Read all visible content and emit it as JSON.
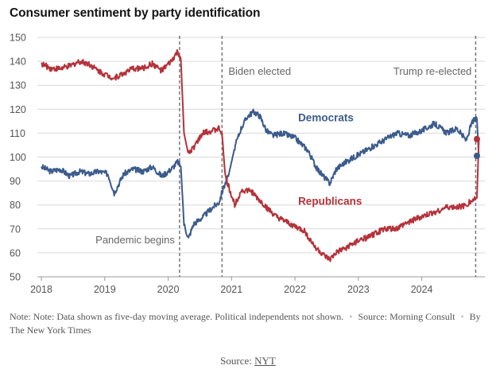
{
  "page": {
    "title": "Consumer sentiment by party identification",
    "note_text": "Note: Note: Data shown as five-day moving average. Political independents not shown.",
    "source_label": "Source:",
    "source_name": "Morning Consult",
    "byline": "By The New York Times",
    "footer_label": "Source:",
    "footer_link": "NYT"
  },
  "colors": {
    "democrats": "#3b5b8c",
    "republicans": "#b4323a",
    "grid": "#d9d9d9",
    "annotation_line": "#777777"
  },
  "chart_data": {
    "type": "line",
    "title": "Consumer sentiment by party identification",
    "xlabel": "",
    "ylabel": "",
    "xlim": [
      2018.0,
      2024.92
    ],
    "ylim": [
      50,
      150
    ],
    "y_ticks": [
      "50",
      "60",
      "70",
      "80",
      "90",
      "100",
      "110",
      "120",
      "130",
      "140",
      "150"
    ],
    "x_ticks": [
      "2018",
      "2019",
      "2020",
      "2021",
      "2022",
      "2023",
      "2024"
    ],
    "grid": "horizontal",
    "legend": "inline labels",
    "series": [
      {
        "name": "Democrats",
        "x": [
          2018.0,
          2018.15,
          2018.3,
          2018.45,
          2018.6,
          2018.75,
          2018.9,
          2019.05,
          2019.15,
          2019.3,
          2019.45,
          2019.6,
          2019.75,
          2019.9,
          2020.05,
          2020.15,
          2020.2,
          2020.25,
          2020.32,
          2020.4,
          2020.55,
          2020.7,
          2020.8,
          2020.87,
          2020.95,
          2021.05,
          2021.15,
          2021.25,
          2021.35,
          2021.45,
          2021.55,
          2021.65,
          2021.8,
          2022.0,
          2022.2,
          2022.35,
          2022.45,
          2022.55,
          2022.65,
          2022.8,
          2023.0,
          2023.2,
          2023.4,
          2023.6,
          2023.8,
          2024.0,
          2024.2,
          2024.4,
          2024.55,
          2024.7,
          2024.8,
          2024.87,
          2024.9
        ],
        "values": [
          96,
          94,
          95,
          92,
          94,
          93,
          94,
          93,
          85,
          93,
          95,
          94,
          96,
          92,
          95,
          98,
          96,
          72,
          66,
          72,
          75,
          79,
          81,
          87,
          92,
          104,
          112,
          117,
          119,
          117,
          111,
          109,
          110,
          108,
          103,
          95,
          92,
          89,
          95,
          98,
          101,
          104,
          107,
          110,
          109,
          111,
          114,
          110,
          112,
          107,
          115,
          116,
          100
        ]
      },
      {
        "name": "Republicans",
        "x": [
          2018.0,
          2018.15,
          2018.3,
          2018.45,
          2018.6,
          2018.75,
          2018.9,
          2019.05,
          2019.15,
          2019.3,
          2019.45,
          2019.6,
          2019.75,
          2019.9,
          2020.05,
          2020.15,
          2020.2,
          2020.25,
          2020.32,
          2020.4,
          2020.55,
          2020.7,
          2020.8,
          2020.85,
          2020.9,
          2020.95,
          2021.05,
          2021.15,
          2021.3,
          2021.4,
          2021.55,
          2021.7,
          2021.85,
          2022.0,
          2022.15,
          2022.3,
          2022.45,
          2022.55,
          2022.65,
          2022.8,
          2023.0,
          2023.2,
          2023.4,
          2023.6,
          2023.8,
          2024.0,
          2024.2,
          2024.4,
          2024.55,
          2024.7,
          2024.8,
          2024.87,
          2024.9
        ],
        "values": [
          139,
          137,
          137,
          138,
          140,
          139,
          136,
          134,
          133,
          135,
          137,
          137,
          139,
          136,
          140,
          144,
          141,
          110,
          101,
          104,
          110,
          111,
          112,
          110,
          92,
          88,
          80,
          86,
          86,
          83,
          79,
          75,
          73,
          71,
          69,
          63,
          59,
          57,
          60,
          62,
          65,
          67,
          70,
          70,
          73,
          75,
          77,
          79,
          79,
          80,
          82,
          83,
          107
        ]
      }
    ],
    "series_labels": [
      {
        "text": "Democrats",
        "x": 2022.05,
        "y": 115
      },
      {
        "text": "Republicans",
        "x": 2022.05,
        "y": 80
      }
    ],
    "annotations": [
      {
        "text": "Pandemic begins",
        "x": 2020.18
      },
      {
        "text": "Biden elected",
        "x": 2020.85
      },
      {
        "text": "Trump re-elected",
        "x": 2024.85
      }
    ],
    "end_markers": [
      {
        "series": "Republicans",
        "x": 2024.87,
        "y": 107.5
      },
      {
        "series": "Democrats",
        "x": 2024.87,
        "y": 100.5
      }
    ]
  }
}
